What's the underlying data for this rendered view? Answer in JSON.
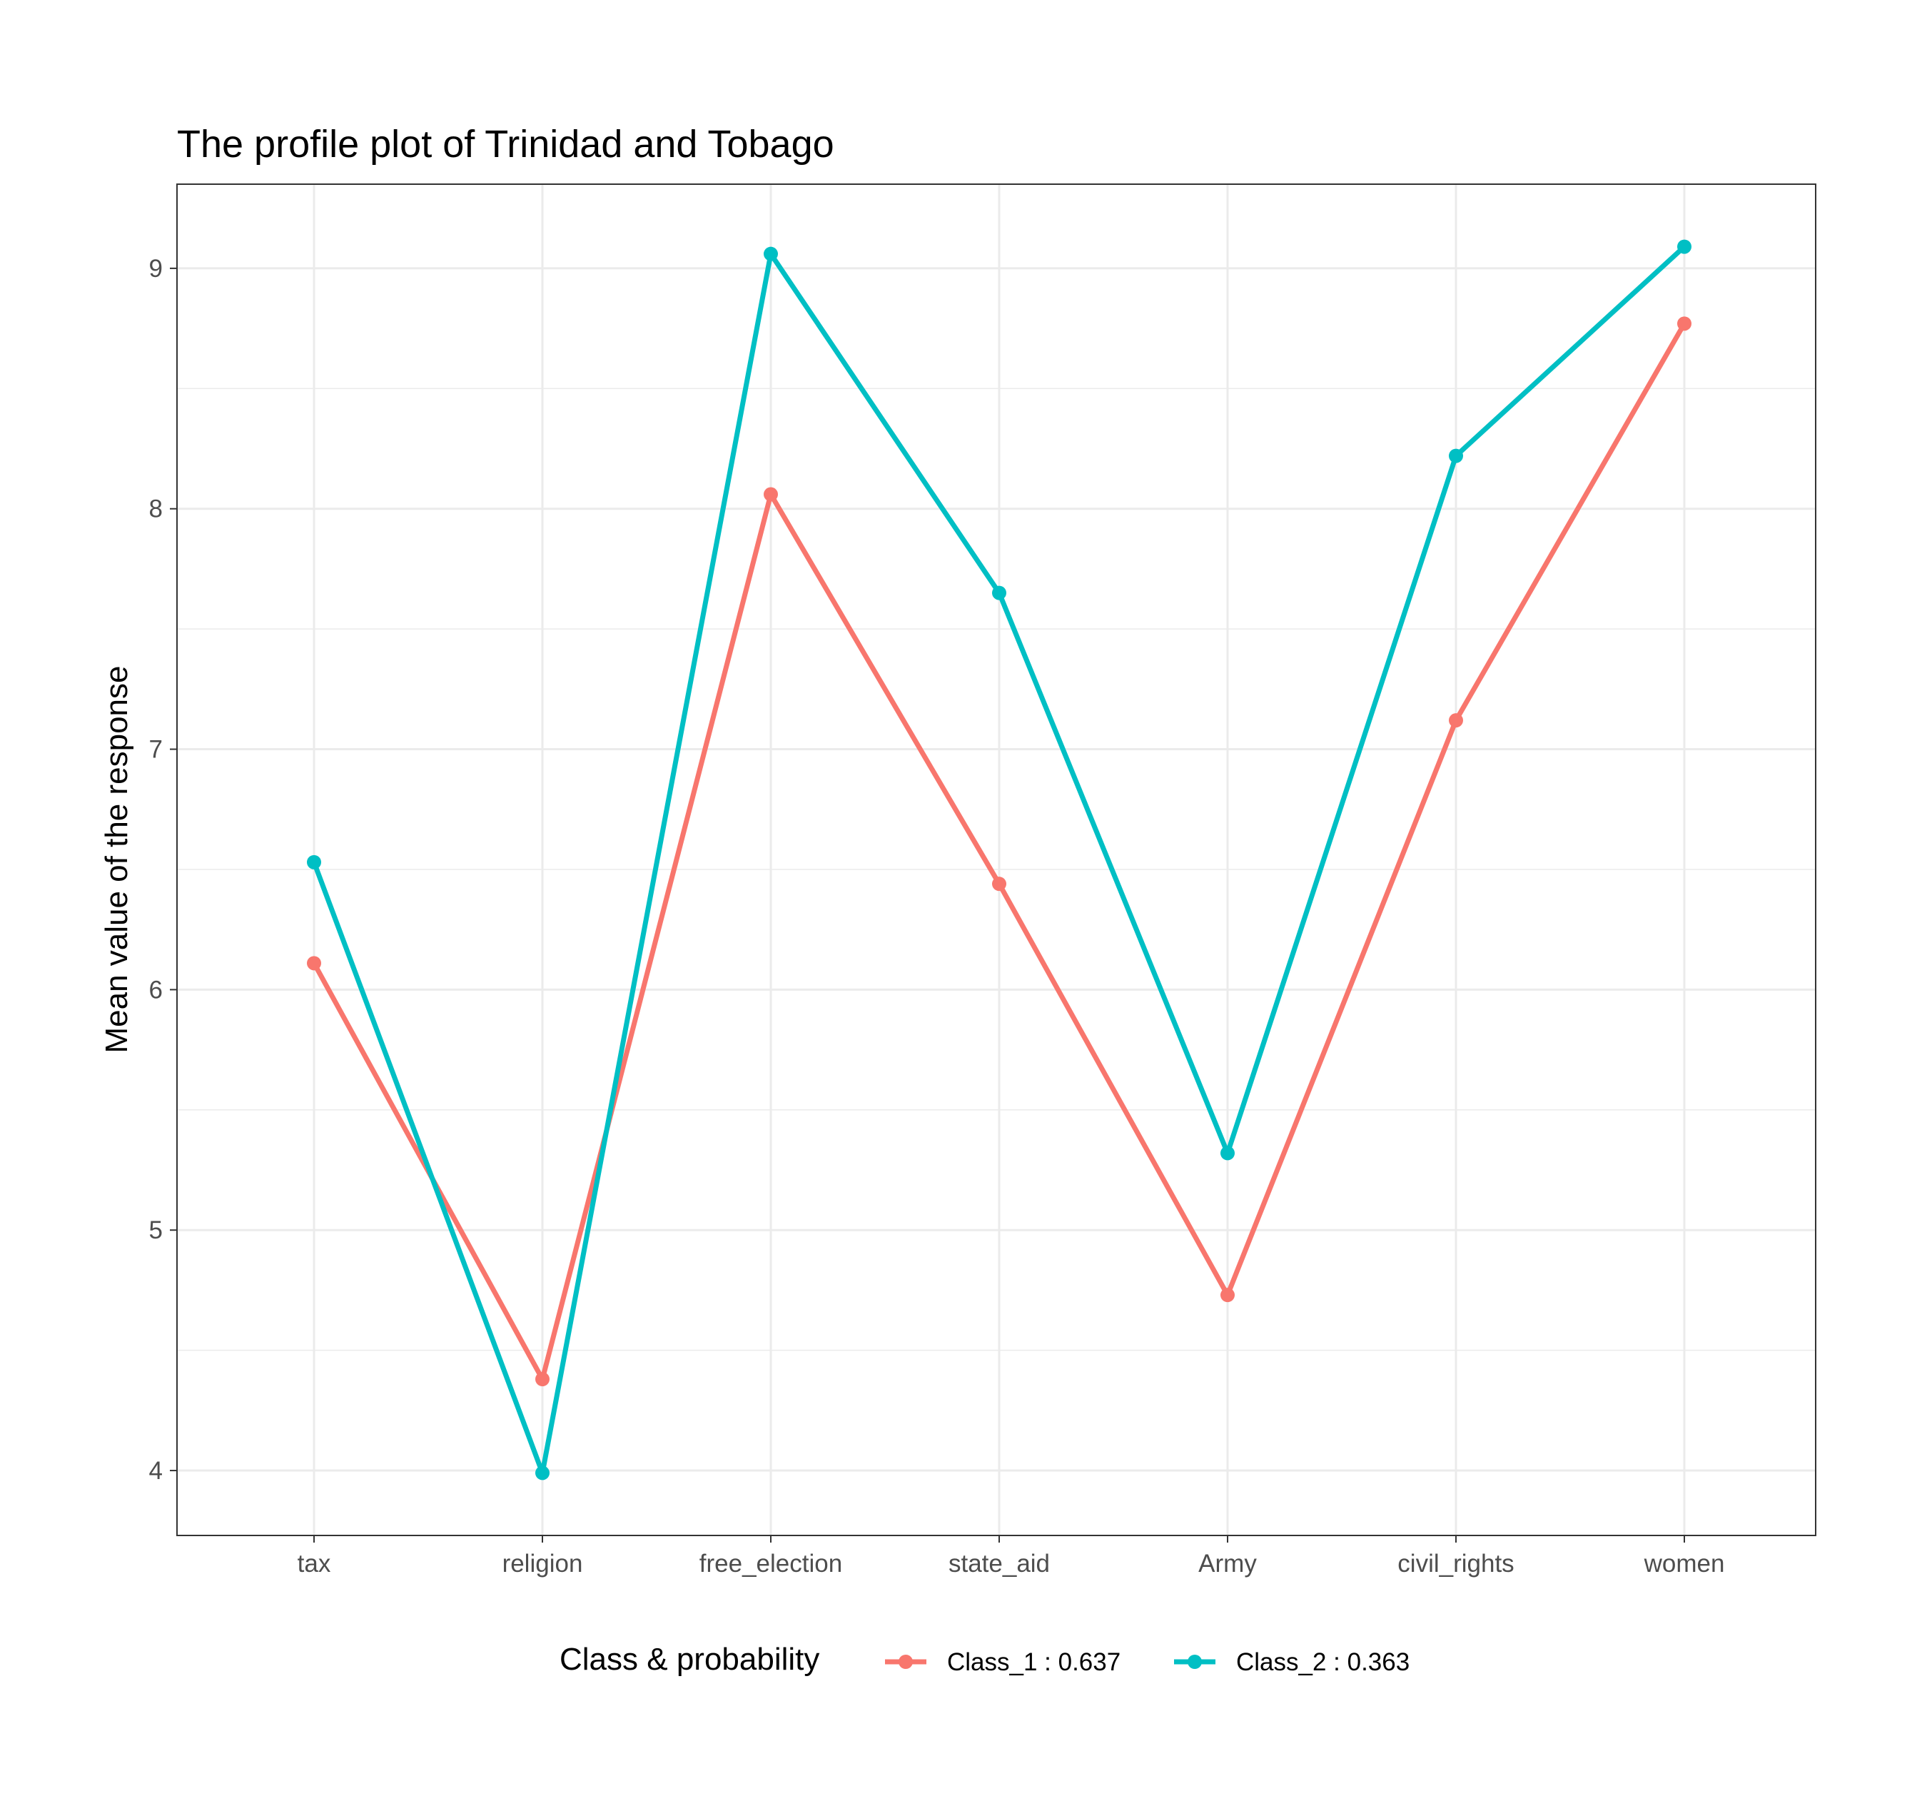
{
  "chart_data": {
    "type": "line",
    "title": "The profile plot of Trinidad and Tobago",
    "xlabel": "",
    "ylabel": "Mean value of the response",
    "categories": [
      "tax",
      "religion",
      "free_election",
      "state_aid",
      "Army",
      "civil_rights",
      "women"
    ],
    "ylim": [
      3.73,
      9.35
    ],
    "yticks": [
      4,
      5,
      6,
      7,
      8,
      9
    ],
    "grid": true,
    "legend": {
      "title": "Class & probability",
      "position": "bottom"
    },
    "series": [
      {
        "name": "Class_1 : 0.637",
        "color": "#F8766D",
        "values": [
          6.11,
          4.38,
          8.06,
          6.44,
          4.73,
          7.12,
          8.77
        ]
      },
      {
        "name": "Class_2 : 0.363",
        "color": "#00BFC4",
        "values": [
          6.53,
          3.99,
          9.06,
          7.65,
          5.32,
          8.22,
          9.09
        ]
      }
    ]
  }
}
